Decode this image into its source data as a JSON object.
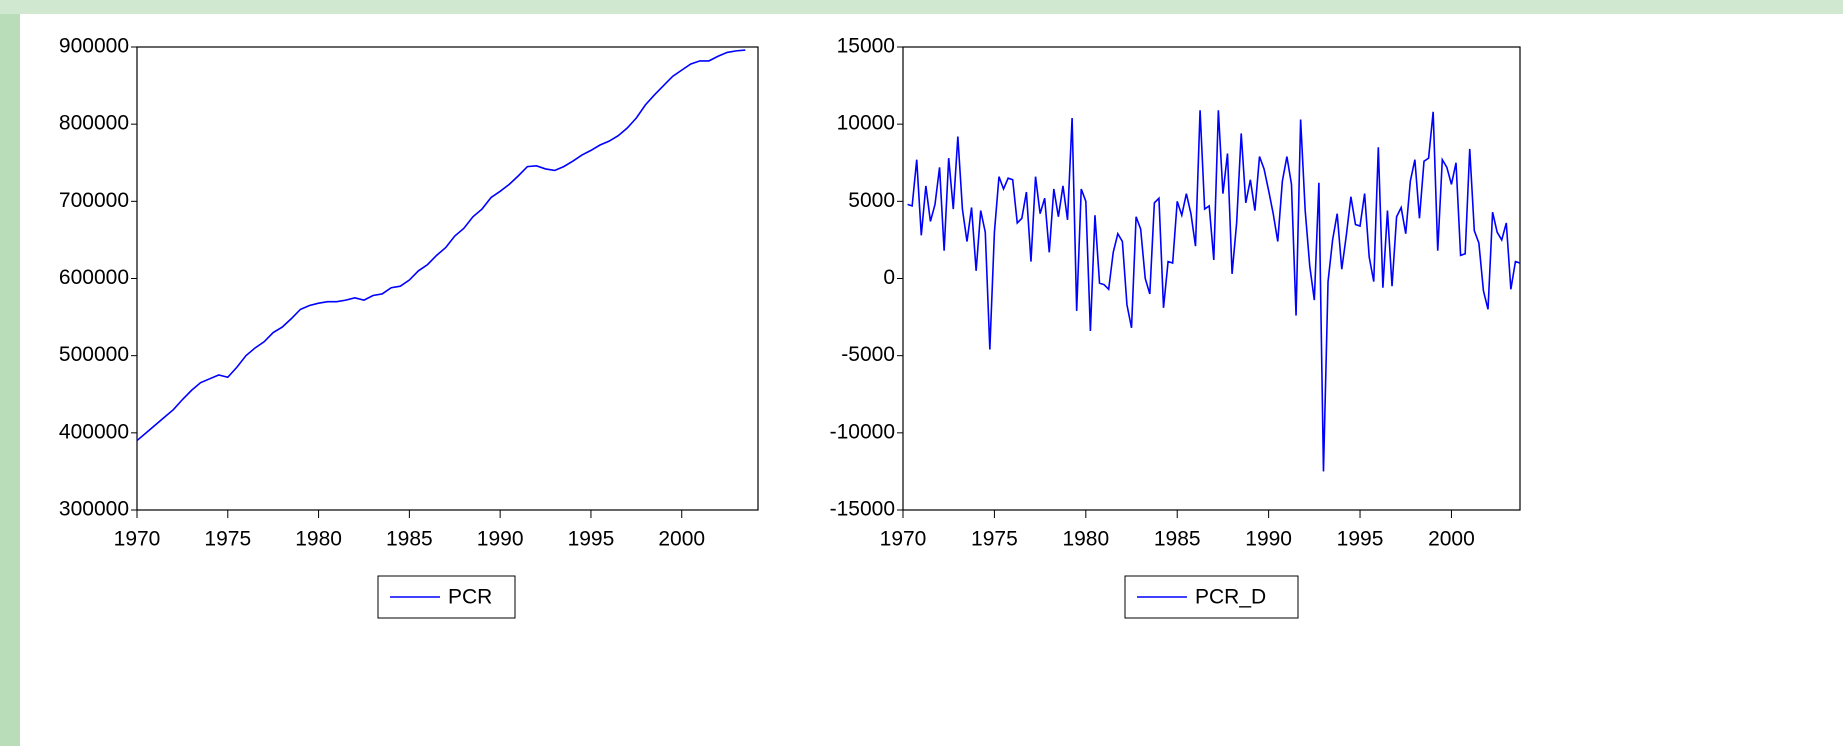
{
  "chart_data": [
    {
      "type": "line",
      "ylim": [
        300000,
        900000
      ],
      "yticks": [
        300000,
        400000,
        500000,
        600000,
        700000,
        800000,
        900000
      ],
      "xlim": [
        1970,
        2004.2
      ],
      "xticks": [
        1970,
        1975,
        1980,
        1985,
        1990,
        1995,
        2000
      ],
      "series": [
        {
          "name": "PCR",
          "color": "#0000ff",
          "x": [
            1970,
            1970.5,
            1971,
            1971.5,
            1972,
            1972.5,
            1973,
            1973.5,
            1974,
            1974.5,
            1975,
            1975.5,
            1976,
            1976.5,
            1977,
            1977.5,
            1978,
            1978.5,
            1979,
            1979.5,
            1980,
            1980.5,
            1981,
            1981.5,
            1982,
            1982.5,
            1983,
            1983.5,
            1984,
            1984.5,
            1985,
            1985.5,
            1986,
            1986.5,
            1987,
            1987.5,
            1988,
            1988.5,
            1989,
            1989.5,
            1990,
            1990.5,
            1991,
            1991.5,
            1992,
            1992.5,
            1993,
            1993.5,
            1994,
            1994.5,
            1995,
            1995.5,
            1996,
            1996.5,
            1997,
            1997.5,
            1998,
            1998.5,
            1999,
            1999.5,
            2000,
            2000.5,
            2001,
            2001.5,
            2002,
            2002.5,
            2003,
            2003.5
          ],
          "values": [
            390000,
            400000,
            410000,
            420000,
            430000,
            443000,
            455000,
            465000,
            470000,
            475000,
            472000,
            485000,
            500000,
            510000,
            518000,
            530000,
            537000,
            548000,
            560000,
            565000,
            568000,
            570000,
            570000,
            572000,
            575000,
            572000,
            578000,
            580000,
            588000,
            590000,
            598000,
            610000,
            618000,
            630000,
            640000,
            655000,
            665000,
            680000,
            690000,
            705000,
            713000,
            722000,
            733000,
            745000,
            746000,
            742000,
            740000,
            745000,
            752000,
            760000,
            766000,
            773000,
            778000,
            785000,
            795000,
            808000,
            825000,
            838000,
            850000,
            862000,
            870000,
            878000,
            882000,
            882000,
            888000,
            893000,
            895000,
            896000
          ]
        }
      ]
    },
    {
      "type": "line",
      "ylim": [
        -15000,
        15000
      ],
      "yticks": [
        -15000,
        -10000,
        -5000,
        0,
        5000,
        10000,
        15000
      ],
      "xlim": [
        1970,
        2003.75
      ],
      "xticks": [
        1970,
        1975,
        1980,
        1985,
        1990,
        1995,
        2000
      ],
      "series": [
        {
          "name": "PCR_D",
          "color": "#0000ff",
          "x": [
            1970.25,
            1970.5,
            1970.75,
            1971,
            1971.25,
            1971.5,
            1971.75,
            1972,
            1972.25,
            1972.5,
            1972.75,
            1973,
            1973.25,
            1973.5,
            1973.75,
            1974,
            1974.25,
            1974.5,
            1974.75,
            1975,
            1975.25,
            1975.5,
            1975.75,
            1976,
            1976.25,
            1976.5,
            1976.75,
            1977,
            1977.25,
            1977.5,
            1977.75,
            1978,
            1978.25,
            1978.5,
            1978.75,
            1979,
            1979.25,
            1979.5,
            1979.75,
            1980,
            1980.25,
            1980.5,
            1980.75,
            1981,
            1981.25,
            1981.5,
            1981.75,
            1982,
            1982.25,
            1982.5,
            1982.75,
            1983,
            1983.25,
            1983.5,
            1983.75,
            1984,
            1984.25,
            1984.5,
            1984.75,
            1985,
            1985.25,
            1985.5,
            1985.75,
            1986,
            1986.25,
            1986.5,
            1986.75,
            1987,
            1987.25,
            1987.5,
            1987.75,
            1988,
            1988.25,
            1988.5,
            1988.75,
            1989,
            1989.25,
            1989.5,
            1989.75,
            1990,
            1990.25,
            1990.5,
            1990.75,
            1991,
            1991.25,
            1991.5,
            1991.75,
            1992,
            1992.25,
            1992.5,
            1992.75,
            1993,
            1993.25,
            1993.5,
            1993.75,
            1994,
            1994.25,
            1994.5,
            1994.75,
            1995,
            1995.25,
            1995.5,
            1995.75,
            1996,
            1996.25,
            1996.5,
            1996.75,
            1997,
            1997.25,
            1997.5,
            1997.75,
            1998,
            1998.25,
            1998.5,
            1998.75,
            1999,
            1999.25,
            1999.5,
            1999.75,
            2000,
            2000.25,
            2000.5,
            2000.75,
            2001,
            2001.25,
            2001.5,
            2001.75,
            2002,
            2002.25,
            2002.5,
            2002.75,
            2003,
            2003.25,
            2003.5,
            2003.75
          ],
          "values": [
            4800,
            4700,
            7700,
            2800,
            6000,
            3700,
            4800,
            7200,
            1800,
            7800,
            4500,
            9200,
            4500,
            2400,
            4600,
            500,
            4400,
            3000,
            -4600,
            3000,
            6600,
            5800,
            6500,
            6400,
            3600,
            3900,
            5600,
            1100,
            6600,
            4200,
            5200,
            1700,
            5800,
            4000,
            6000,
            3800,
            10400,
            -2100,
            5800,
            5000,
            -3400,
            4100,
            -300,
            -400,
            -700,
            1700,
            2900,
            2400,
            -1700,
            -3200,
            4000,
            3200,
            0,
            -1000,
            4900,
            5200,
            -1900,
            1100,
            1000,
            5000,
            4100,
            5500,
            4200,
            2100,
            10900,
            4500,
            4700,
            1200,
            10900,
            5500,
            8100,
            300,
            3600,
            9400,
            4900,
            6400,
            4400,
            7900,
            7100,
            5700,
            4200,
            2400,
            6300,
            7900,
            6100,
            -2400,
            10300,
            4400,
            800,
            -1400,
            6200,
            -12500,
            -200,
            2500,
            4200,
            600,
            2800,
            5300,
            3500,
            3400,
            5500,
            1400,
            -200,
            8500,
            -600,
            4400,
            -500,
            4000,
            4600,
            2900,
            6300,
            7700,
            3900,
            7600,
            7800,
            10800,
            1800,
            7700,
            7200,
            6100,
            7500,
            1500,
            1600,
            8400,
            3100,
            2300,
            -800,
            -2000,
            4300,
            3000,
            2500,
            3600,
            -700,
            1100,
            1000
          ]
        }
      ]
    }
  ]
}
